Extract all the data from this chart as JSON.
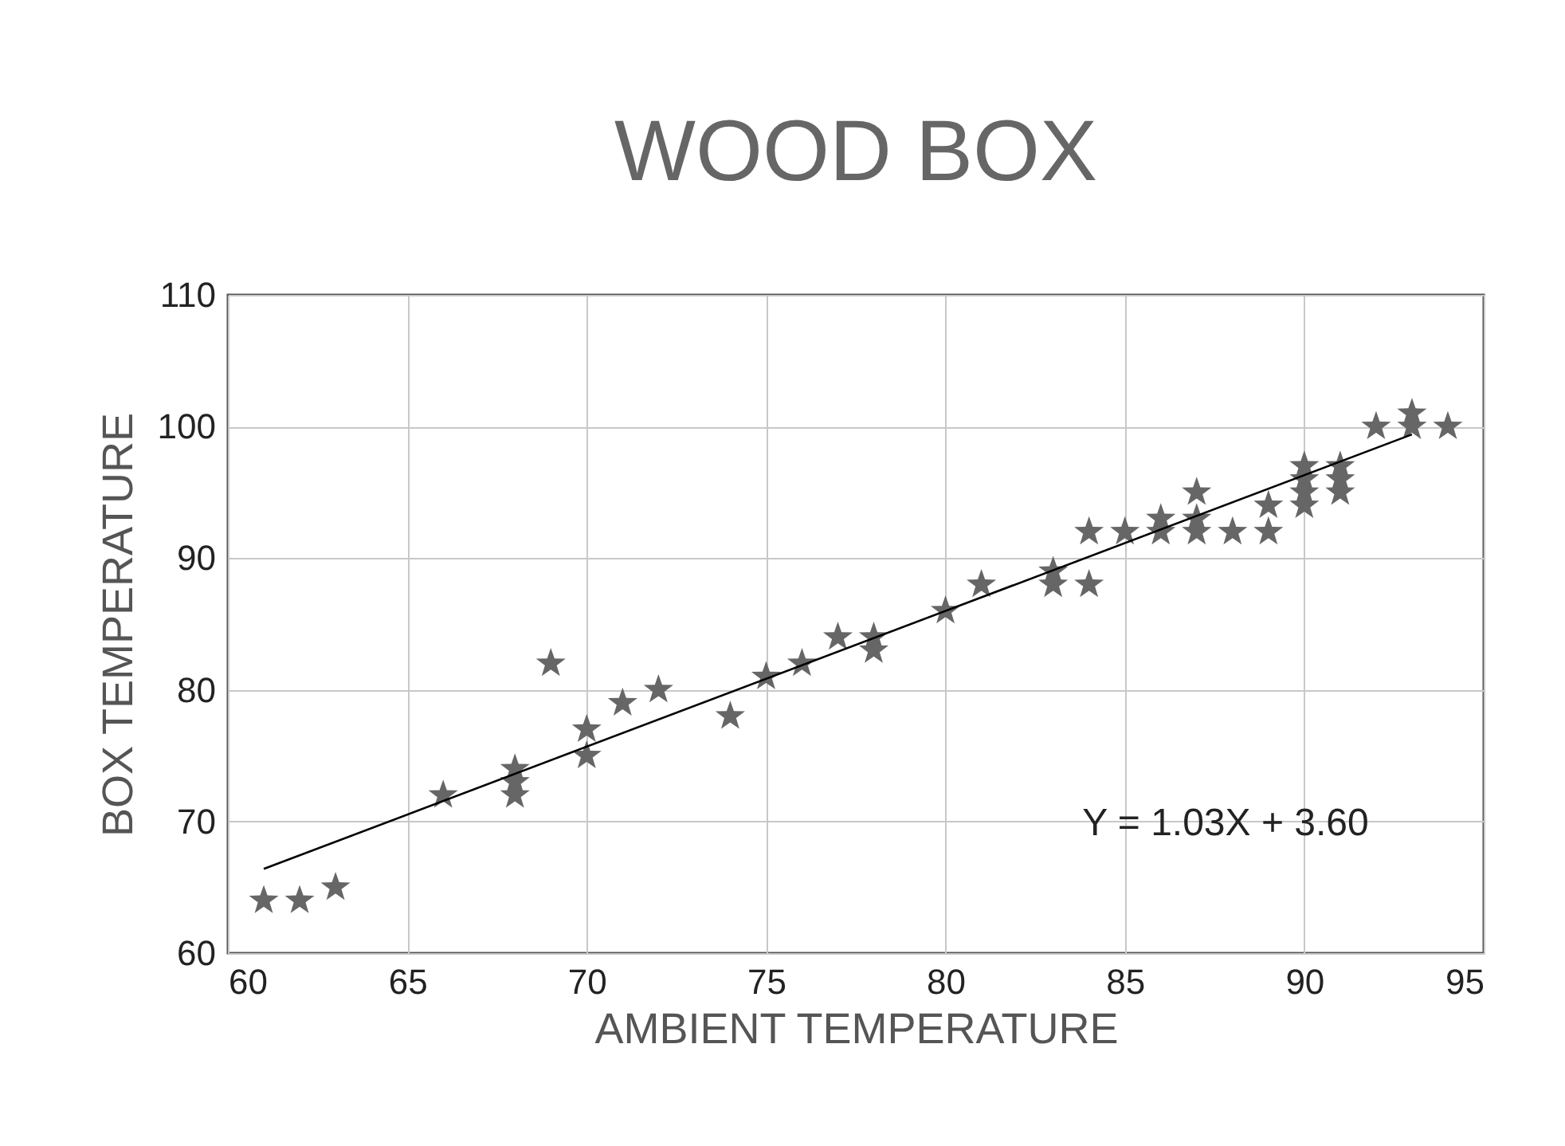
{
  "chart_data": {
    "type": "scatter",
    "title": "WOOD BOX",
    "xlabel": "AMBIENT TEMPERATURE",
    "ylabel": "BOX TEMPERATURE",
    "annotations": [
      "Y = 1.03X + 3.60"
    ],
    "xlim": [
      60,
      95
    ],
    "xticks": [
      60,
      65,
      70,
      75,
      80,
      85,
      90,
      95
    ],
    "ylim": [
      60,
      110
    ],
    "yticks": [
      60,
      70,
      80,
      90,
      100,
      110
    ],
    "grid": true,
    "series": [
      {
        "marker": "star",
        "color": "#666666",
        "x": [
          61,
          62,
          63,
          66,
          68,
          68,
          68,
          69,
          70,
          70,
          71,
          72,
          74,
          75,
          76,
          77,
          78,
          78,
          80,
          81,
          83,
          83,
          84,
          84,
          85,
          86,
          86,
          87,
          87,
          87,
          88,
          89,
          89,
          90,
          90,
          90,
          90,
          91,
          91,
          91,
          92,
          93,
          93,
          94
        ],
        "values": [
          64,
          64,
          65,
          72,
          74,
          73,
          72,
          82,
          77,
          75,
          79,
          80,
          78,
          81,
          82,
          84,
          84,
          83,
          86,
          88,
          89,
          88,
          88,
          92,
          92,
          92,
          93,
          95,
          93,
          92,
          92,
          92,
          94,
          97,
          96,
          95,
          94,
          97,
          96,
          95,
          100,
          101,
          100,
          100
        ]
      },
      {
        "type": "line",
        "marker": "none",
        "color": "#000000",
        "x": [
          61,
          93
        ],
        "values": [
          66.4,
          99.4
        ]
      }
    ]
  }
}
